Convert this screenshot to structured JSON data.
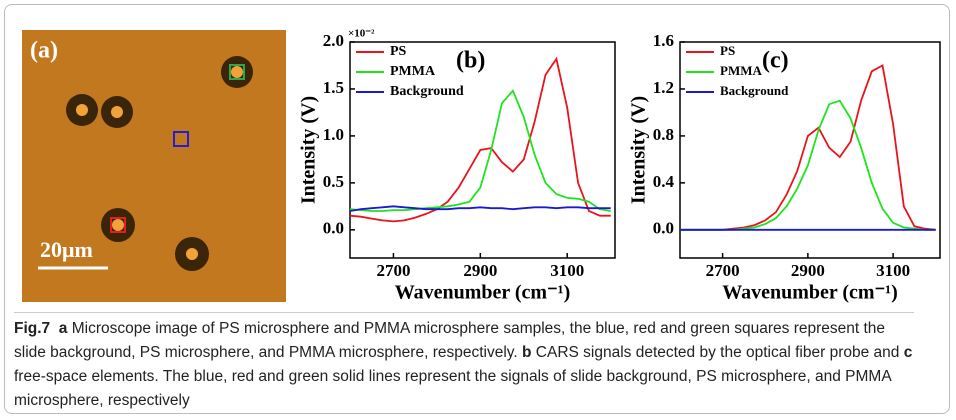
{
  "panel_a": {
    "label": "(a)",
    "scale_bar": "20μm"
  },
  "chart_data": [
    {
      "type": "line",
      "panel_label": "(b)",
      "y_multiplier": "×10⁻²",
      "xlabel": "Wavenumber (cm⁻¹)",
      "ylabel": "Intensity (V)",
      "xlim": [
        2600,
        3210
      ],
      "xticks": [
        2700,
        2900,
        3100
      ],
      "ylim": [
        -0.3,
        2.0
      ],
      "yticks": [
        {
          "value": 0,
          "label": "0.0"
        },
        0.5,
        {
          "value": 1,
          "label": "1.0"
        },
        1.5,
        {
          "value": 2,
          "label": "2.0"
        }
      ],
      "legend": "upper left",
      "x": [
        2600,
        2625,
        2650,
        2675,
        2700,
        2725,
        2750,
        2775,
        2800,
        2825,
        2850,
        2875,
        2900,
        2925,
        2950,
        2975,
        3000,
        3025,
        3050,
        3075,
        3100,
        3125,
        3150,
        3175,
        3200
      ],
      "series": [
        {
          "name": "PS",
          "color": "#e8141c",
          "values": [
            0.15,
            0.14,
            0.12,
            0.1,
            0.09,
            0.1,
            0.13,
            0.17,
            0.22,
            0.3,
            0.45,
            0.65,
            0.85,
            0.87,
            0.72,
            0.62,
            0.75,
            1.15,
            1.65,
            1.82,
            1.3,
            0.5,
            0.2,
            0.15,
            0.15
          ]
        },
        {
          "name": "PMMA",
          "color": "#1ee41e",
          "values": [
            0.22,
            0.21,
            0.2,
            0.2,
            0.21,
            0.21,
            0.22,
            0.23,
            0.24,
            0.25,
            0.27,
            0.3,
            0.45,
            0.85,
            1.35,
            1.48,
            1.2,
            0.8,
            0.5,
            0.38,
            0.34,
            0.33,
            0.3,
            0.22,
            0.2
          ]
        },
        {
          "name": "Background",
          "color": "#1a1ad0",
          "values": [
            0.2,
            0.22,
            0.23,
            0.24,
            0.25,
            0.24,
            0.23,
            0.22,
            0.22,
            0.22,
            0.23,
            0.23,
            0.24,
            0.23,
            0.23,
            0.22,
            0.23,
            0.24,
            0.24,
            0.23,
            0.24,
            0.24,
            0.23,
            0.23,
            0.23
          ]
        }
      ]
    },
    {
      "type": "line",
      "panel_label": "(c)",
      "xlabel": "Wavenumber (cm⁻¹)",
      "ylabel": "Intensity (V)",
      "xlim": [
        2600,
        3210
      ],
      "xticks": [
        2700,
        2900,
        3100
      ],
      "ylim": [
        -0.24,
        1.6
      ],
      "yticks": [
        {
          "value": 0,
          "label": "0.0"
        },
        0.4,
        0.8,
        1.2,
        1.6
      ],
      "legend": "upper left",
      "x": [
        2600,
        2625,
        2650,
        2675,
        2700,
        2725,
        2750,
        2775,
        2800,
        2825,
        2850,
        2875,
        2900,
        2925,
        2950,
        2975,
        3000,
        3025,
        3050,
        3075,
        3100,
        3125,
        3150,
        3175,
        3200
      ],
      "series": [
        {
          "name": "PS",
          "color": "#e8141c",
          "values": [
            0,
            0,
            0,
            0,
            0,
            0.01,
            0.02,
            0.04,
            0.08,
            0.15,
            0.3,
            0.5,
            0.8,
            0.87,
            0.7,
            0.62,
            0.75,
            1.1,
            1.35,
            1.4,
            0.9,
            0.2,
            0.03,
            0.01,
            0
          ]
        },
        {
          "name": "PMMA",
          "color": "#1ee41e",
          "values": [
            0,
            0,
            0,
            0,
            0,
            0,
            0.01,
            0.02,
            0.05,
            0.1,
            0.2,
            0.35,
            0.55,
            0.85,
            1.07,
            1.1,
            0.95,
            0.7,
            0.4,
            0.18,
            0.06,
            0.02,
            0.01,
            0,
            0
          ]
        },
        {
          "name": "Background",
          "color": "#1a1ad0",
          "values": [
            0,
            0,
            0,
            0,
            0,
            0,
            0,
            0,
            0,
            0,
            0,
            0,
            0,
            0,
            0,
            0,
            0,
            0,
            0,
            0,
            0,
            0,
            0,
            0,
            0
          ]
        }
      ]
    }
  ],
  "caption": {
    "figure": "Fig.7",
    "parts": [
      {
        "label": "a",
        "text": "Microscope image of PS microsphere and PMMA microsphere samples, the blue, red and green squares represent the slide background, PS microsphere, and PMMA microsphere, respectively."
      },
      {
        "label": "b",
        "text": "CARS signals detected by the optical fiber probe and"
      },
      {
        "label": "c",
        "text": "free-space elements. The blue, red and green solid lines represent the signals of slide background, PS microsphere, and PMMA microsphere, respectively"
      }
    ]
  }
}
